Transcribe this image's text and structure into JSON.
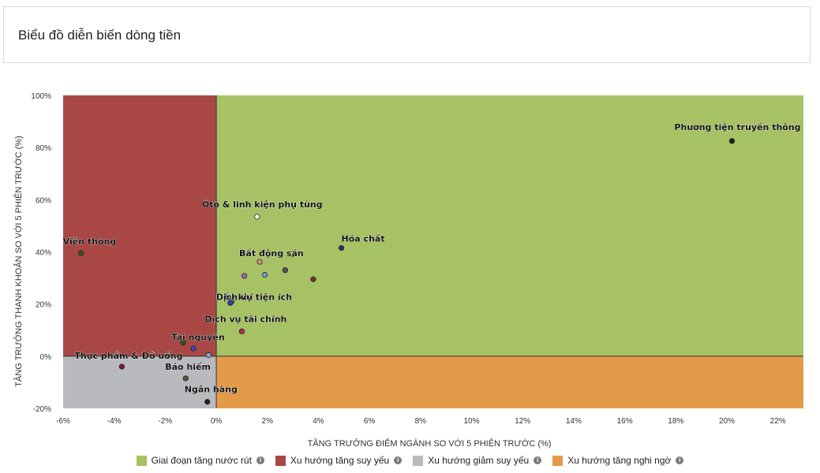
{
  "header": {
    "title": "Biểu đồ diễn biến dòng tiền"
  },
  "chart_data": {
    "type": "scatter",
    "title": "",
    "xlabel": "TĂNG TRƯỞNG ĐIỂM NGÀNH SO VỚI 5 PHIÊN TRƯỚC (%)",
    "ylabel": "TĂNG TRƯỞNG THANH KHOẢN SO VỚI 5 PHIÊN TRƯỚC (%)",
    "xlim": [
      -6,
      23
    ],
    "ylim": [
      -20,
      100
    ],
    "x_ticks": [
      -6,
      -4,
      -2,
      0,
      2,
      4,
      6,
      8,
      10,
      12,
      14,
      16,
      18,
      20,
      22
    ],
    "x_tick_labels": [
      "-6%",
      "-4%",
      "-2%",
      "0%",
      "2%",
      "4%",
      "6%",
      "8%",
      "10%",
      "12%",
      "14%",
      "16%",
      "18%",
      "20%",
      "22%"
    ],
    "y_ticks": [
      -20,
      0,
      20,
      40,
      60,
      80,
      100
    ],
    "y_tick_labels": [
      "-20%",
      "0%",
      "20%",
      "40%",
      "60%",
      "80%",
      "100%"
    ],
    "quadrants": [
      {
        "name": "Giai đoạn tăng nước rút",
        "color": "#a6c265"
      },
      {
        "name": "Xu hướng tăng suy yếu",
        "color": "#a94745"
      },
      {
        "name": "Xu hướng giảm suy yếu",
        "color": "#b9babe"
      },
      {
        "name": "Xu hướng tăng nghi ngờ",
        "color": "#e49b49"
      }
    ],
    "points": [
      {
        "label": "Phương tiện truyền thông",
        "x": 20.2,
        "y": 82.5,
        "color": "#1a1a1a"
      },
      {
        "label": "Ôtô & linh kiện phụ tùng",
        "x": 1.6,
        "y": 53.5,
        "color": "#f4f4e8"
      },
      {
        "label": "Viễn thông",
        "x": -5.3,
        "y": 39.5,
        "color": "#2e5a25"
      },
      {
        "label": "Hóa chất",
        "x": 4.9,
        "y": 41.5,
        "color": "#2c3470"
      },
      {
        "label": "",
        "x": 3.0,
        "y": 39.2,
        "color": "#f5ed3a"
      },
      {
        "label": "Bất động sản",
        "x": 1.7,
        "y": 36.2,
        "color": "#d98c8c"
      },
      {
        "label": "",
        "x": 2.7,
        "y": 33.0,
        "color": "#555555"
      },
      {
        "label": "",
        "x": 1.9,
        "y": 31.2,
        "color": "#6f9fd8"
      },
      {
        "label": "",
        "x": 1.1,
        "y": 30.8,
        "color": "#a560b8"
      },
      {
        "label": "",
        "x": 3.8,
        "y": 29.5,
        "color": "#7a2b34"
      },
      {
        "label": "Dầu khí",
        "x": 0.6,
        "y": 21.0,
        "color": "#3b66c9"
      },
      {
        "label": "Dịch vụ tiện ích",
        "x": 0.55,
        "y": 20.4,
        "color": "#3b3bb0"
      },
      {
        "label": "Dịch vụ tài chính",
        "x": 1.0,
        "y": 9.5,
        "color": "#c02452"
      },
      {
        "label": "Tài nguyên",
        "x": -1.3,
        "y": 5.2,
        "color": "#245a22"
      },
      {
        "label": "",
        "x": -0.9,
        "y": 3.0,
        "color": "#3a4cc9"
      },
      {
        "label": "",
        "x": -0.3,
        "y": 0.4,
        "color": "#78a8e0"
      },
      {
        "label": "Thực phẩm & Đồ uống",
        "x": -3.7,
        "y": -4.0,
        "color": "#7a1a2a"
      },
      {
        "label": "Bảo hiểm",
        "x": -1.2,
        "y": -8.5,
        "color": "#4a5a3a"
      },
      {
        "label": "Ngân hàng",
        "x": -0.35,
        "y": -17.5,
        "color": "#222222"
      }
    ]
  }
}
